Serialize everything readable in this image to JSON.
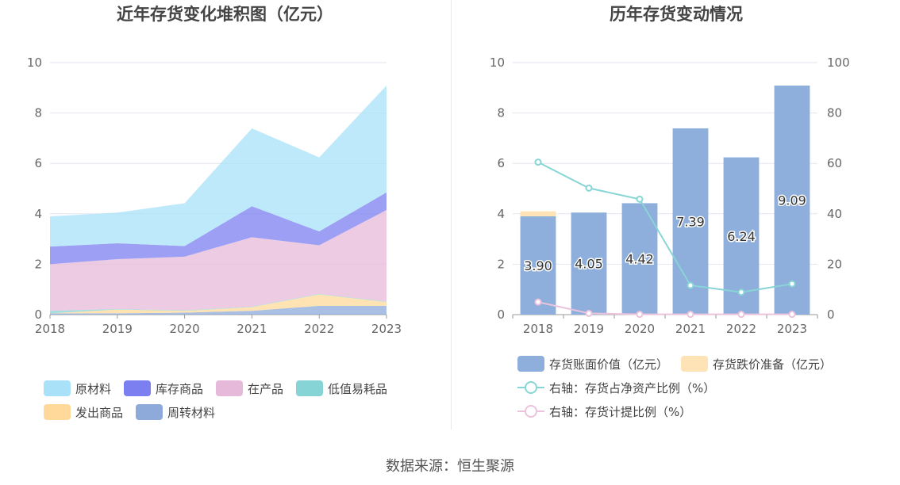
{
  "left_chart": {
    "title": "近年存货变化堆积图（亿元）",
    "legend": [
      {
        "name": "原材料",
        "color": "#a8e1f8"
      },
      {
        "name": "库存商品",
        "color": "#7b7ff0"
      },
      {
        "name": "在产品",
        "color": "#e6b9da"
      },
      {
        "name": "低值易耗品",
        "color": "#86d4d6"
      },
      {
        "name": "发出商品",
        "color": "#ffd99a"
      },
      {
        "name": "周转材料",
        "color": "#8eaadb"
      }
    ]
  },
  "right_chart": {
    "title": "历年存货变动情况",
    "legend": [
      {
        "name": "存货账面价值（亿元）",
        "color": "#8eaedb",
        "kind": "bar"
      },
      {
        "name": "存货跌价准备（亿元）",
        "color": "#fde3b5",
        "kind": "bar"
      },
      {
        "name": "右轴：存货占净资产比例（%）",
        "color": "#88d5d5",
        "kind": "line"
      },
      {
        "name": "右轴：存货计提比例（%）",
        "color": "#ebc3dc",
        "kind": "line"
      }
    ]
  },
  "source": "数据来源：恒生聚源",
  "chart_data": [
    {
      "type": "area",
      "stacked": true,
      "title": "近年存货变化堆积图（亿元）",
      "categories": [
        "2018",
        "2019",
        "2020",
        "2021",
        "2022",
        "2023"
      ],
      "ylim": [
        0,
        10
      ],
      "yticks": [
        0,
        2,
        4,
        6,
        8,
        10
      ],
      "grid": true,
      "legend_position": "bottom",
      "series": [
        {
          "name": "周转材料",
          "color": "#8eaadb",
          "values": [
            0.05,
            0.05,
            0.08,
            0.15,
            0.35,
            0.35
          ]
        },
        {
          "name": "发出商品",
          "color": "#ffd99a",
          "values": [
            0.0,
            0.15,
            0.07,
            0.15,
            0.45,
            0.15
          ]
        },
        {
          "name": "低值易耗品",
          "color": "#86d4d6",
          "values": [
            0.1,
            0.02,
            0.02,
            0.02,
            0.02,
            0.02
          ]
        },
        {
          "name": "在产品",
          "color": "#e6b9da",
          "values": [
            1.85,
            1.98,
            2.13,
            2.75,
            1.93,
            3.63
          ]
        },
        {
          "name": "库存商品",
          "color": "#7b7ff0",
          "values": [
            0.7,
            0.63,
            0.42,
            1.23,
            0.55,
            0.7
          ]
        },
        {
          "name": "原材料",
          "color": "#a8e1f8",
          "values": [
            1.2,
            1.22,
            1.7,
            3.09,
            2.94,
            4.24
          ]
        }
      ]
    },
    {
      "type": "bar",
      "stacked": true,
      "title": "历年存货变动情况",
      "categories": [
        "2018",
        "2019",
        "2020",
        "2021",
        "2022",
        "2023"
      ],
      "ylim": [
        0,
        10
      ],
      "yticks": [
        0,
        2,
        4,
        6,
        8,
        10
      ],
      "y2lim": [
        0,
        100
      ],
      "y2ticks": [
        0,
        20,
        40,
        60,
        80,
        100
      ],
      "grid": true,
      "legend_position": "bottom",
      "series": [
        {
          "name": "存货账面价值（亿元）",
          "axis": "left",
          "kind": "bar",
          "color": "#8eaedb",
          "values": [
            3.9,
            4.05,
            4.42,
            7.39,
            6.24,
            9.09
          ],
          "labels": [
            "3.90",
            "4.05",
            "4.42",
            "7.39",
            "6.24",
            "9.09"
          ]
        },
        {
          "name": "存货跌价准备（亿元）",
          "axis": "left",
          "kind": "bar",
          "color": "#fde3b5",
          "values": [
            0.2,
            0.0,
            0.0,
            0.0,
            0.0,
            0.0
          ]
        },
        {
          "name": "右轴：存货占净资产比例（%）",
          "axis": "right",
          "kind": "line",
          "color": "#88d5d5",
          "values": [
            60.5,
            50.2,
            45.8,
            11.6,
            8.9,
            12.2
          ]
        },
        {
          "name": "右轴：存货计提比例（%）",
          "axis": "right",
          "kind": "line",
          "color": "#ebc3dc",
          "values": [
            5.0,
            0.5,
            0.1,
            0.1,
            0.1,
            0.1
          ]
        }
      ]
    }
  ]
}
